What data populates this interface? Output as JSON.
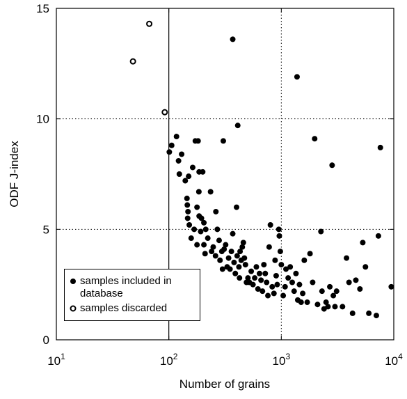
{
  "chart_data": {
    "type": "scatter",
    "xlabel": "Number of grains",
    "ylabel": "ODF J-index",
    "log_x": true,
    "xlim": [
      10,
      10000
    ],
    "ylim": [
      0,
      15
    ],
    "xticks": [
      {
        "value": 10,
        "label": "10",
        "exponent": "1"
      },
      {
        "value": 100,
        "label": "10",
        "exponent": "2"
      },
      {
        "value": 1000,
        "label": "10",
        "exponent": "3"
      },
      {
        "value": 10000,
        "label": "10",
        "exponent": "4"
      }
    ],
    "yticks": [
      0,
      5,
      10,
      15
    ],
    "grid": true,
    "threshold_x": 100,
    "legend": "lower-left",
    "series": [
      {
        "name": "samples included in database",
        "color": "#000000",
        "filled": true,
        "x": [
          101,
          106,
          117,
          122,
          130,
          124,
          140,
          145,
          146,
          148,
          147,
          152,
          158,
          150,
          163,
          172,
          182,
          186,
          200,
          185,
          178,
          186,
          195,
          168,
          178,
          192,
          205,
          210,
          205,
          213,
          235,
          240,
          248,
          222,
          260,
          262,
          270,
          280,
          285,
          296,
          300,
          305,
          310,
          320,
          330,
          340,
          350,
          360,
          370,
          380,
          390,
          400,
          405,
          410,
          420,
          425,
          430,
          440,
          450,
          460,
          470,
          480,
          490,
          505,
          520,
          540,
          560,
          580,
          600,
          620,
          640,
          660,
          680,
          700,
          720,
          740,
          760,
          780,
          800,
          830,
          860,
          880,
          900,
          920,
          950,
          960,
          980,
          1000,
          1040,
          1080,
          1100,
          1150,
          1200,
          1250,
          1300,
          1350,
          1380,
          1400,
          1450,
          1500,
          1550,
          1600,
          1700,
          1800,
          1900,
          1980,
          2100,
          2250,
          2300,
          2400,
          2500,
          2600,
          2700,
          2830,
          2900,
          3000,
          3100,
          3500,
          3800,
          4000,
          4300,
          4600,
          5000,
          5300,
          5600,
          6000,
          7000,
          7300,
          7600,
          9500,
          370
        ],
        "values": [
          8.5,
          8.8,
          9.2,
          8.1,
          8.4,
          7.5,
          7.2,
          6.4,
          6.1,
          5.8,
          5.5,
          5.2,
          4.6,
          7.4,
          7.8,
          9.0,
          9.0,
          7.6,
          7.6,
          6.7,
          6.0,
          5.6,
          5.5,
          5.0,
          4.3,
          4.9,
          4.3,
          3.9,
          5.3,
          5.0,
          6.7,
          4.0,
          4.2,
          4.6,
          3.8,
          5.8,
          5.0,
          4.5,
          3.6,
          4.0,
          3.2,
          9.0,
          4.1,
          4.3,
          3.3,
          3.7,
          3.2,
          4.0,
          4.8,
          3.5,
          3.0,
          6.0,
          3.8,
          9.7,
          3.3,
          2.8,
          4.0,
          3.6,
          4.2,
          4.4,
          3.7,
          3.4,
          2.6,
          2.8,
          2.6,
          3.1,
          2.5,
          2.8,
          3.3,
          2.3,
          3.0,
          2.7,
          2.2,
          3.4,
          3.0,
          2.6,
          2.0,
          4.2,
          5.2,
          2.4,
          2.1,
          3.6,
          2.9,
          2.5,
          5.0,
          4.7,
          4.0,
          3.4,
          2.0,
          2.4,
          3.2,
          2.8,
          3.3,
          2.6,
          2.2,
          3.0,
          11.9,
          1.8,
          2.5,
          1.7,
          2.1,
          3.6,
          1.7,
          3.9,
          2.6,
          9.1,
          1.6,
          4.9,
          2.2,
          1.4,
          1.7,
          1.5,
          2.4,
          7.9,
          2.0,
          1.5,
          2.2,
          1.5,
          3.7,
          2.6,
          1.2,
          2.7,
          2.3,
          4.4,
          3.3,
          1.2,
          1.1,
          4.7,
          8.7,
          2.4,
          13.6
        ]
      },
      {
        "name": "samples discarded",
        "color": "#000000",
        "filled": false,
        "x": [
          48,
          67,
          92
        ],
        "values": [
          12.6,
          14.3,
          10.3
        ]
      }
    ]
  }
}
